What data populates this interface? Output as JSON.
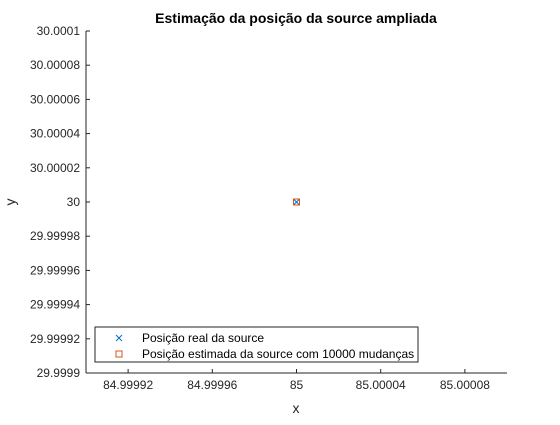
{
  "chart_data": {
    "type": "scatter",
    "title": "Estimação da posição da source ampliada",
    "xlabel": "x",
    "ylabel": "y",
    "xlim": [
      84.9999,
      85.0001
    ],
    "ylim": [
      29.9999,
      30.0001
    ],
    "x_ticks": [
      84.99992,
      84.99996,
      85,
      85.00004,
      85.00008
    ],
    "x_tick_labels": [
      "84.99992",
      "84.99996",
      "85",
      "85.00004",
      "85.00008"
    ],
    "y_ticks": [
      29.9999,
      29.99992,
      29.99994,
      29.99996,
      29.99998,
      30,
      30.00002,
      30.00004,
      30.00006,
      30.00008,
      30.0001
    ],
    "y_tick_labels": [
      "29.9999",
      "29.99992",
      "29.99994",
      "29.99996",
      "29.99998",
      "30",
      "30.00002",
      "30.00004",
      "30.00006",
      "30.00008",
      "30.0001"
    ],
    "grid": false,
    "legend_position": "bottom-left",
    "series": [
      {
        "name": "Posição real da source",
        "marker": "x",
        "color": "#0072BD",
        "points": [
          {
            "x": 85,
            "y": 30
          }
        ]
      },
      {
        "name": "Posição estimada da source com 10000 mudanças",
        "marker": "square",
        "color": "#D95319",
        "points": [
          {
            "x": 85,
            "y": 30
          }
        ]
      }
    ]
  }
}
